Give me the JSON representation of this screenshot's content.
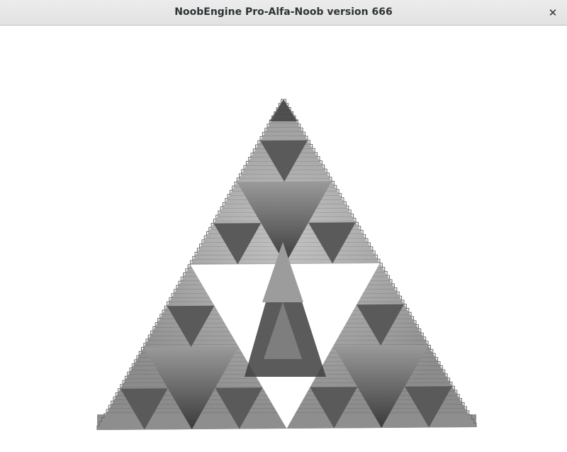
{
  "window": {
    "title": "NoobEngine Pro-Alfa-Noob version 666",
    "close_glyph": "✕"
  },
  "scene": {
    "object": "sierpinski-pyramid",
    "recursion_depth": 3,
    "colors": {
      "background": "#ffffff",
      "face_light": "#b4b4b4",
      "face_mid": "#8e8e8e",
      "face_dark": "#3c3c3c",
      "edge": "#6a6a6a"
    }
  }
}
